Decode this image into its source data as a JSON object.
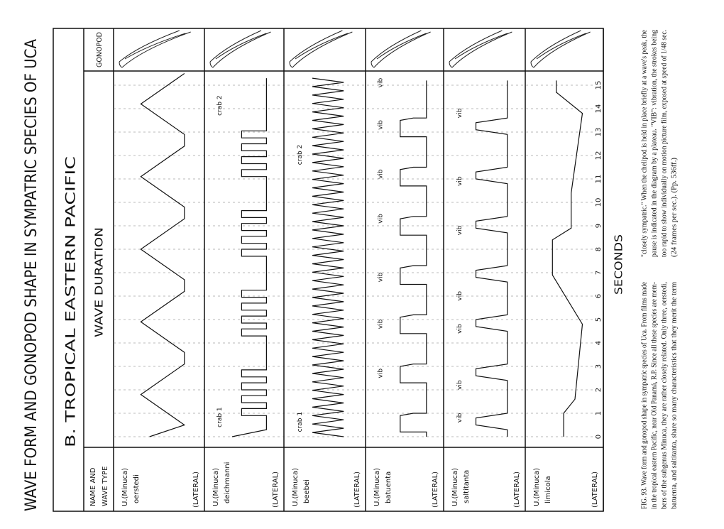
{
  "title": "WAVE FORM AND GONOPOD SHAPE IN SYMPATRIC SPECIES OF UCA",
  "subtitle": "B. TROPICAL EASTERN PACIFIC",
  "headers": {
    "name": [
      "NAME AND",
      "WAVE TYPE"
    ],
    "wave": "WAVE DURATION",
    "gonopod": "GONOPOD"
  },
  "rows": [
    {
      "genus": "U.(Minuca)",
      "species": "oerstedi",
      "wave_type": "(LATERAL)",
      "labels": []
    },
    {
      "genus": "U.(Minuca)",
      "species": "deichmanni",
      "wave_type": "(LATERAL)",
      "labels": [
        "crab 1",
        "crab 2"
      ]
    },
    {
      "genus": "U.(Minuca)",
      "species": "beebei",
      "wave_type": "(LATERAL)",
      "labels": [
        "crab 1",
        "crab 2"
      ]
    },
    {
      "genus": "U.(Minuca)",
      "species": "batuenta",
      "wave_type": "(LATERAL)",
      "labels": [
        "vib",
        "vib",
        "vib",
        "vib",
        "vib",
        "vib",
        "vib"
      ]
    },
    {
      "genus": "U.(Minuca)",
      "species": "saltitanta",
      "wave_type": "(LATERAL)",
      "labels": [
        "vib",
        "vib",
        "vib",
        "vib",
        "vib",
        "vib",
        "vib"
      ]
    },
    {
      "genus": "U.(Minuca)",
      "species": "limicola",
      "wave_type": "(LATERAL)",
      "labels": []
    }
  ],
  "axis": {
    "ticks": [
      "0",
      "1",
      "2",
      "3",
      "4",
      "5",
      "6",
      "7",
      "8",
      "9",
      "10",
      "11",
      "12",
      "13",
      "14",
      "15"
    ],
    "label": "SECONDS"
  },
  "caption": [
    "FIG. 93. Wave form and gonopod shape in sympatric species of Uca. From films made",
    "in the tropical eastern Pacific, near Old Panamá, R.P. Since all these species are mem-",
    "bers of the subgenus Minuca, they are rather closely related. Only three, oerstedi,",
    "batuenta, and saltitanta, share so many characteristics that they merit the term",
    "\"closely sympatric.\" When the chelipod is held in place briefly at a wave's peak, the",
    "pause is indicated in the diagram by a plateau. \"VIB\": vibration, the strokes being",
    "too rapid to show individually on motion picture film, exposed at speed of 1/48 sec.",
    "(24 frames per sec.). (Pp. 536ff.)"
  ]
}
